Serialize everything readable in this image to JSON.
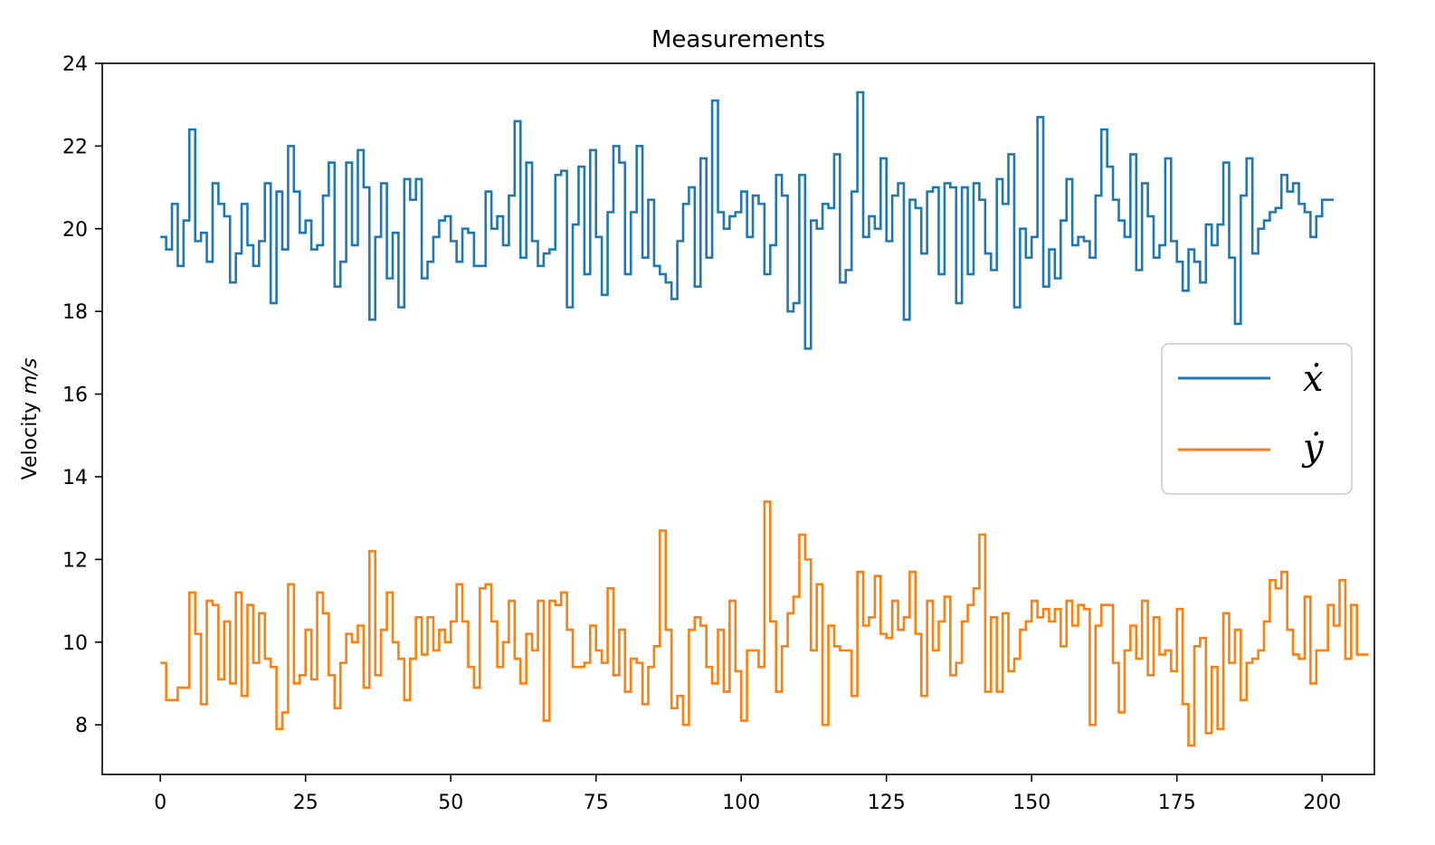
{
  "chart_data": {
    "type": "line",
    "drawstyle": "steps-post",
    "title": "Measurements",
    "xlabel": "",
    "ylabel": "Velocity",
    "ylabel_unit": "m/s",
    "xlim": [
      -10,
      209
    ],
    "ylim": [
      6.8,
      24
    ],
    "xticks": [
      0,
      25,
      50,
      75,
      100,
      125,
      150,
      175,
      200
    ],
    "yticks": [
      8,
      10,
      12,
      14,
      16,
      18,
      20,
      22,
      24
    ],
    "grid": false,
    "legend_position": "right",
    "x_step": 1,
    "x_start": 0,
    "series": [
      {
        "name": "ẋ",
        "color": "#1f77b4",
        "values": [
          19.8,
          19.5,
          20.6,
          19.1,
          20.2,
          22.4,
          19.7,
          19.9,
          19.2,
          21.1,
          20.6,
          20.3,
          18.7,
          19.4,
          20.6,
          19.6,
          19.1,
          19.7,
          21.1,
          18.2,
          20.9,
          19.5,
          22.0,
          20.9,
          19.9,
          20.2,
          19.5,
          19.6,
          20.8,
          21.6,
          18.6,
          19.2,
          21.6,
          19.6,
          21.9,
          21.0,
          17.8,
          19.8,
          21.1,
          18.8,
          19.9,
          18.1,
          21.2,
          20.7,
          21.2,
          18.8,
          19.2,
          19.8,
          20.2,
          20.3,
          19.7,
          19.2,
          20.0,
          19.9,
          19.1,
          19.1,
          20.9,
          20.0,
          20.3,
          19.6,
          20.8,
          22.6,
          19.3,
          21.6,
          19.7,
          19.1,
          19.4,
          19.5,
          21.3,
          21.4,
          18.1,
          20.1,
          21.5,
          18.9,
          21.9,
          19.8,
          18.4,
          20.4,
          22.0,
          21.6,
          18.9,
          20.4,
          22.0,
          19.3,
          20.7,
          19.1,
          18.9,
          18.7,
          18.3,
          19.7,
          20.6,
          21.0,
          18.6,
          21.7,
          19.3,
          23.1,
          20.4,
          20.0,
          20.3,
          20.4,
          20.9,
          19.8,
          20.8,
          20.6,
          18.9,
          19.6,
          21.3,
          20.8,
          18.0,
          18.2,
          21.3,
          17.1,
          20.2,
          20.0,
          20.6,
          20.5,
          21.8,
          18.7,
          19.0,
          20.9,
          23.3,
          19.8,
          20.3,
          20.0,
          21.7,
          19.7,
          20.8,
          21.1,
          17.8,
          20.7,
          20.5,
          19.4,
          20.9,
          21.0,
          18.9,
          21.1,
          21.0,
          18.2,
          21.0,
          18.9,
          21.1,
          20.7,
          19.4,
          19.0,
          21.2,
          20.6,
          21.8,
          18.1,
          20.0,
          19.3,
          19.8,
          22.7,
          18.6,
          19.5,
          18.8,
          20.2,
          21.2,
          19.6,
          19.8,
          19.7,
          19.3,
          20.8,
          22.4,
          21.5,
          20.7,
          20.2,
          19.8,
          21.8,
          19.0,
          21.1,
          20.3,
          19.3,
          19.6,
          21.7,
          19.7,
          19.2,
          18.5,
          19.5,
          19.2,
          18.7,
          20.1,
          19.6,
          20.1,
          21.6,
          19.3,
          17.7,
          20.8,
          21.7,
          19.4,
          20.0,
          20.2,
          20.4,
          20.5,
          21.3,
          20.9,
          21.1,
          20.6,
          20.4,
          19.8,
          20.3,
          20.7,
          20.7
        ]
      },
      {
        "name": "ẏ",
        "color": "#ff7f0e",
        "values": [
          9.5,
          8.6,
          8.6,
          8.9,
          8.9,
          11.2,
          10.2,
          8.5,
          11.0,
          10.9,
          9.1,
          10.5,
          9.0,
          11.2,
          8.7,
          10.9,
          9.5,
          10.7,
          9.6,
          9.4,
          7.9,
          8.3,
          11.4,
          9.0,
          9.2,
          10.3,
          9.1,
          11.2,
          10.7,
          9.2,
          8.4,
          9.5,
          10.2,
          10.0,
          10.4,
          8.9,
          12.2,
          9.2,
          10.3,
          11.2,
          10.0,
          9.6,
          8.6,
          9.6,
          10.6,
          9.7,
          10.6,
          9.8,
          10.3,
          10.0,
          10.5,
          11.4,
          10.5,
          9.4,
          8.9,
          11.3,
          11.4,
          10.5,
          9.4,
          10.0,
          11.0,
          9.6,
          9.0,
          10.2,
          9.8,
          11.0,
          8.1,
          11.0,
          10.9,
          11.2,
          10.3,
          9.4,
          9.4,
          9.5,
          10.4,
          9.8,
          9.5,
          11.3,
          9.2,
          10.3,
          8.8,
          9.6,
          9.5,
          8.5,
          9.4,
          9.9,
          12.7,
          10.3,
          8.4,
          8.7,
          8.0,
          10.3,
          10.6,
          10.4,
          9.4,
          9.0,
          10.3,
          8.8,
          11.0,
          9.3,
          8.1,
          9.8,
          9.8,
          9.4,
          13.4,
          10.5,
          8.8,
          9.9,
          10.7,
          11.1,
          12.6,
          12.0,
          9.8,
          11.4,
          8.0,
          10.4,
          9.9,
          9.8,
          9.8,
          8.7,
          11.7,
          10.4,
          10.6,
          11.6,
          10.2,
          10.1,
          11.0,
          10.3,
          10.6,
          11.7,
          10.2,
          8.7,
          11.0,
          9.8,
          10.5,
          11.1,
          9.2,
          9.5,
          10.5,
          10.9,
          11.3,
          12.6,
          8.8,
          10.6,
          8.8,
          10.7,
          9.3,
          9.6,
          10.3,
          10.5,
          11.0,
          10.6,
          10.8,
          10.5,
          10.8,
          9.9,
          11.0,
          10.4,
          10.9,
          10.8,
          8.0,
          10.4,
          10.9,
          10.9,
          9.5,
          8.3,
          9.8,
          10.4,
          9.6,
          11.0,
          9.2,
          10.6,
          9.7,
          9.8,
          9.3,
          10.8,
          8.5,
          7.5,
          9.9,
          10.1,
          7.8,
          9.4,
          7.9,
          10.7,
          9.5,
          10.3,
          8.6,
          9.5,
          9.6,
          9.8,
          10.5,
          11.5,
          11.3,
          11.7,
          10.3,
          9.7,
          9.6,
          11.1,
          9.0,
          9.8,
          9.8,
          10.9,
          10.4,
          11.5,
          9.6,
          10.9,
          9.7,
          9.7
        ]
      }
    ]
  }
}
